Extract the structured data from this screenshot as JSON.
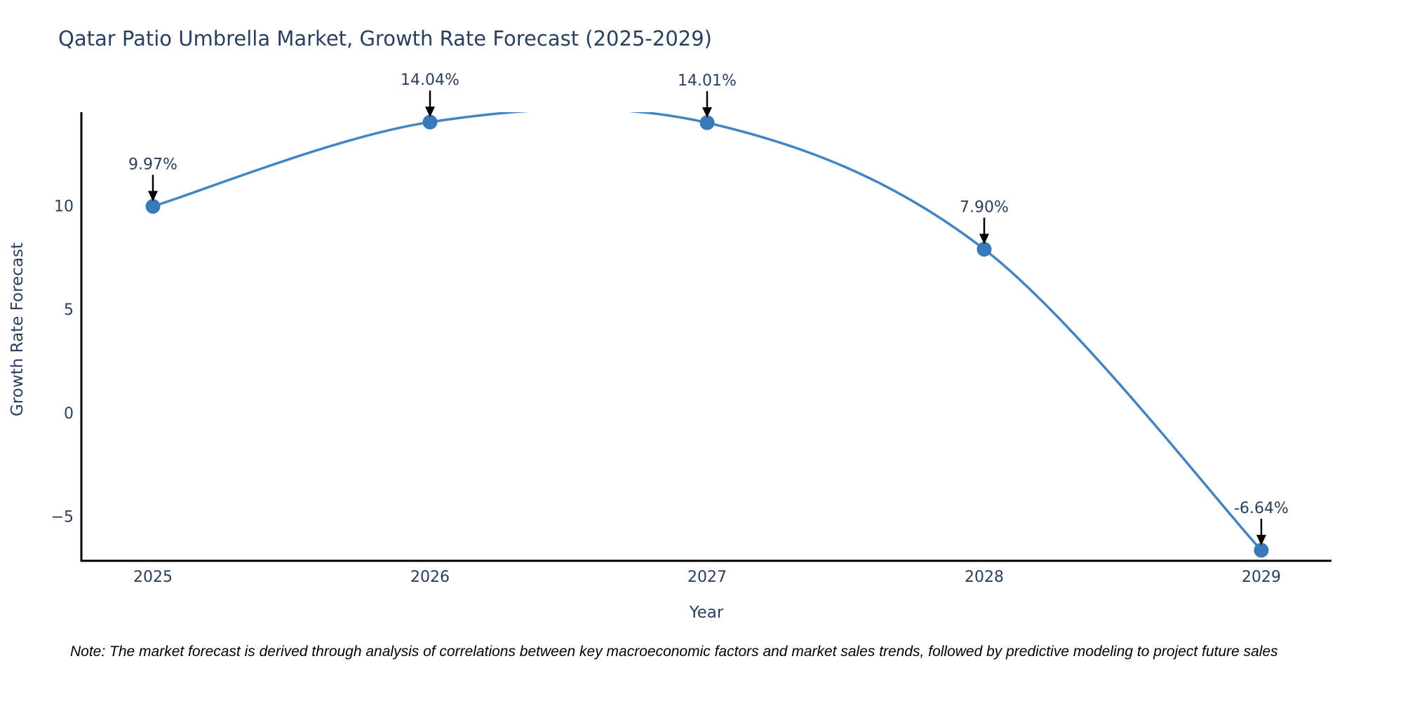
{
  "title": "Qatar Patio Umbrella Market, Growth Rate Forecast (2025-2029)",
  "note": "Note: The market forecast is derived through analysis of correlations between key macroeconomic factors and market sales trends, followed by predictive modeling to project future sales",
  "colors": {
    "line": "#4285c2",
    "marker": "#3a79b8",
    "axis": "#000000",
    "text": "#2a3f5f",
    "arrow": "#000000",
    "background": "#ffffff"
  },
  "chart_data": {
    "type": "line",
    "title": "Qatar Patio Umbrella Market, Growth Rate Forecast (2025-2029)",
    "xlabel": "Year",
    "ylabel": "Growth Rate Forecast",
    "categories": [
      "2025",
      "2026",
      "2027",
      "2028",
      "2029"
    ],
    "values": [
      9.97,
      14.04,
      14.01,
      7.9,
      -6.64
    ],
    "point_labels": [
      "9.97%",
      "14.04%",
      "14.01%",
      "7.90%",
      "-6.64%"
    ],
    "y_ticks": [
      10,
      5,
      0,
      -5
    ],
    "y_tick_labels": [
      "10",
      "5",
      "0",
      "−5"
    ],
    "ylim": [
      -7.15,
      14.52
    ],
    "grid": false,
    "legend": "none",
    "line_shape": "spline",
    "annotations": "arrows-to-points"
  }
}
